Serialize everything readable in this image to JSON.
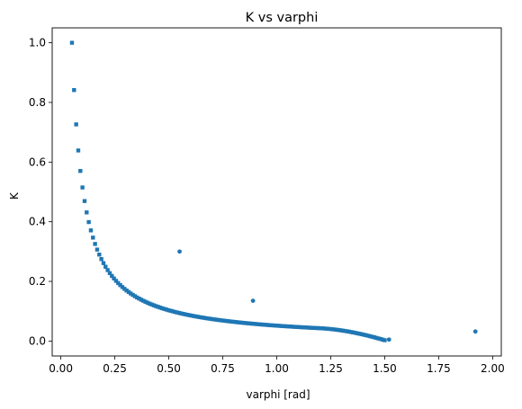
{
  "chart_data": {
    "type": "scatter",
    "title": "K vs varphi",
    "xlabel": "varphi [rad]",
    "ylabel": "K",
    "xlim": [
      -0.04,
      2.04
    ],
    "ylim": [
      -0.05,
      1.05
    ],
    "xticks": [
      0.0,
      0.25,
      0.5,
      0.75,
      1.0,
      1.25,
      1.5,
      1.75,
      2.0
    ],
    "xtick_labels": [
      "0.00",
      "0.25",
      "0.50",
      "0.75",
      "1.00",
      "1.25",
      "1.50",
      "1.75",
      "2.00"
    ],
    "yticks": [
      0.0,
      0.2,
      0.4,
      0.6,
      0.8,
      1.0
    ],
    "ytick_labels": [
      "0.0",
      "0.2",
      "0.4",
      "0.6",
      "0.8",
      "1.0"
    ],
    "grid": false,
    "legend": false,
    "marker_color": "#1f77b4",
    "series": [
      {
        "marker": "square",
        "curve": "K = 0.0516 / varphi",
        "x_start": 0.0516,
        "x_end": 1.5,
        "point_count": 150,
        "end_value_note": "K approaches 0 near varphi = 1.5",
        "x": [
          0.0516,
          0.0645,
          0.0774,
          0.0903,
          0.1032,
          0.1161,
          0.129,
          0.1419,
          0.1548,
          0.1677,
          0.1806
        ],
        "y": [
          1.0,
          0.8,
          0.667,
          0.571,
          0.5,
          0.444,
          0.4,
          0.364,
          0.333,
          0.308,
          0.286
        ]
      },
      {
        "marker": "circle",
        "x": [
          0.55,
          0.89,
          1.52,
          1.92
        ],
        "y": [
          0.3,
          0.135,
          0.005,
          0.032
        ]
      }
    ]
  }
}
